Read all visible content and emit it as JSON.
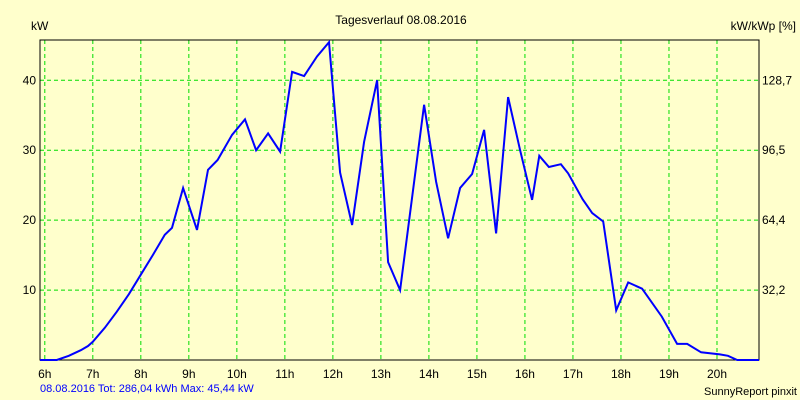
{
  "chart_data": {
    "type": "line",
    "title": "Tagesverlauf 08.08.2016",
    "ylabel": "kW",
    "ylabel_right": "kW/kWp [%]",
    "xlim": [
      5.9,
      20.875
    ],
    "ylim": [
      0,
      45.76
    ],
    "grid": true,
    "x_ticks": [
      6,
      7,
      8,
      9,
      10,
      11,
      12,
      13,
      14,
      15,
      16,
      17,
      18,
      19,
      20
    ],
    "x_tick_labels": [
      "6h",
      "7h",
      "8h",
      "9h",
      "10h",
      "11h",
      "12h",
      "13h",
      "14h",
      "15h",
      "16h",
      "17h",
      "18h",
      "19h",
      "20h"
    ],
    "y_ticks": [
      10,
      20,
      30,
      40
    ],
    "y_tick_labels": [
      "10",
      "20",
      "30",
      "40"
    ],
    "y_right_tick_labels": [
      "32,2",
      "64,4",
      "96,5",
      "128,7"
    ],
    "series": [
      {
        "name": "kW",
        "color": "#0000FF",
        "x": [
          5.9,
          6.25,
          6.5,
          6.75,
          6.9,
          7.0,
          7.25,
          7.5,
          7.75,
          8.0,
          8.25,
          8.5,
          8.65,
          8.88,
          9.17,
          9.4,
          9.6,
          9.9,
          10.17,
          10.4,
          10.65,
          10.9,
          11.15,
          11.4,
          11.67,
          11.92,
          12.15,
          12.4,
          12.65,
          12.92,
          13.15,
          13.4,
          13.9,
          14.15,
          14.4,
          14.65,
          14.9,
          15.15,
          15.4,
          15.65,
          15.9,
          16.15,
          16.3,
          16.5,
          16.75,
          16.9,
          17.2,
          17.4,
          17.63,
          17.9,
          18.15,
          18.44,
          18.85,
          19.17,
          19.38,
          19.67,
          20.06,
          20.23,
          20.42,
          20.875
        ],
        "y": [
          0,
          0,
          0.6,
          1.4,
          2.0,
          2.6,
          4.6,
          6.9,
          9.4,
          12.2,
          15.0,
          17.9,
          18.9,
          24.6,
          18.6,
          27.2,
          28.6,
          32.2,
          34.4,
          30.0,
          32.4,
          29.8,
          41.2,
          40.6,
          43.4,
          45.44,
          26.8,
          19.3,
          31.2,
          40.0,
          14.0,
          10.0,
          36.5,
          25.5,
          17.4,
          24.6,
          26.6,
          32.9,
          18.1,
          37.6,
          30.0,
          22.9,
          29.2,
          27.6,
          28.0,
          26.7,
          23.0,
          21.0,
          19.8,
          7.1,
          11.1,
          10.2,
          6.2,
          2.3,
          2.3,
          1.1,
          0.8,
          0.6,
          0,
          0
        ]
      }
    ]
  },
  "footer": {
    "summary": "08.08.2016 Tot: 286,04 kWh Max: 45,44 kW",
    "credit": "SunnyReport pinxit"
  }
}
